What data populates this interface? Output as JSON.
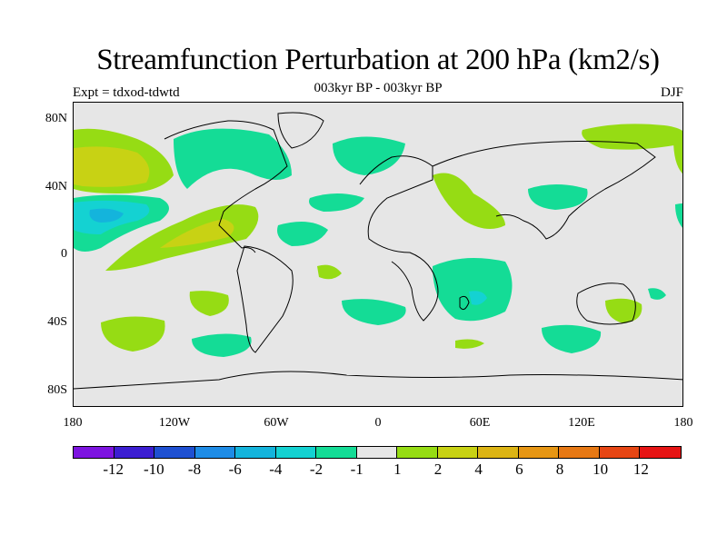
{
  "header": {
    "title": "Streamfunction Perturbation at 200 hPa (km2/s)",
    "subtitle": "003kyr BP - 003kyr BP",
    "left_label": "Expt = tdxod-tdwtd",
    "right_label": "DJF"
  },
  "axes": {
    "lat_labels": [
      "80N",
      "40N",
      "0",
      "40S",
      "80S"
    ],
    "lon_labels": [
      "180",
      "120W",
      "60W",
      "0",
      "60E",
      "120E",
      "180"
    ]
  },
  "colorbar": {
    "colors": [
      "#7d14e0",
      "#3c1ed2",
      "#1e50d2",
      "#1e8ce6",
      "#14b4dc",
      "#14d2d2",
      "#14dc96",
      "#e6e6e6",
      "#96dc14",
      "#c8d214",
      "#dcb414",
      "#e69614",
      "#e67814",
      "#e64614",
      "#e61414"
    ],
    "labels": [
      "-12",
      "-10",
      "-8",
      "-6",
      "-4",
      "-2",
      "-1",
      "1",
      "2",
      "4",
      "6",
      "8",
      "10",
      "12"
    ]
  },
  "colors": {
    "neutral": "#e6e6e6",
    "level_neg1_to_neg2": "#14dc96",
    "level_neg2_to_neg4": "#14d2d2",
    "level_neg4_to_neg6": "#14b4dc",
    "level_1_to_2": "#96dc14",
    "level_2_to_4": "#c8d214",
    "level_4_to_6": "#dcb414"
  }
}
